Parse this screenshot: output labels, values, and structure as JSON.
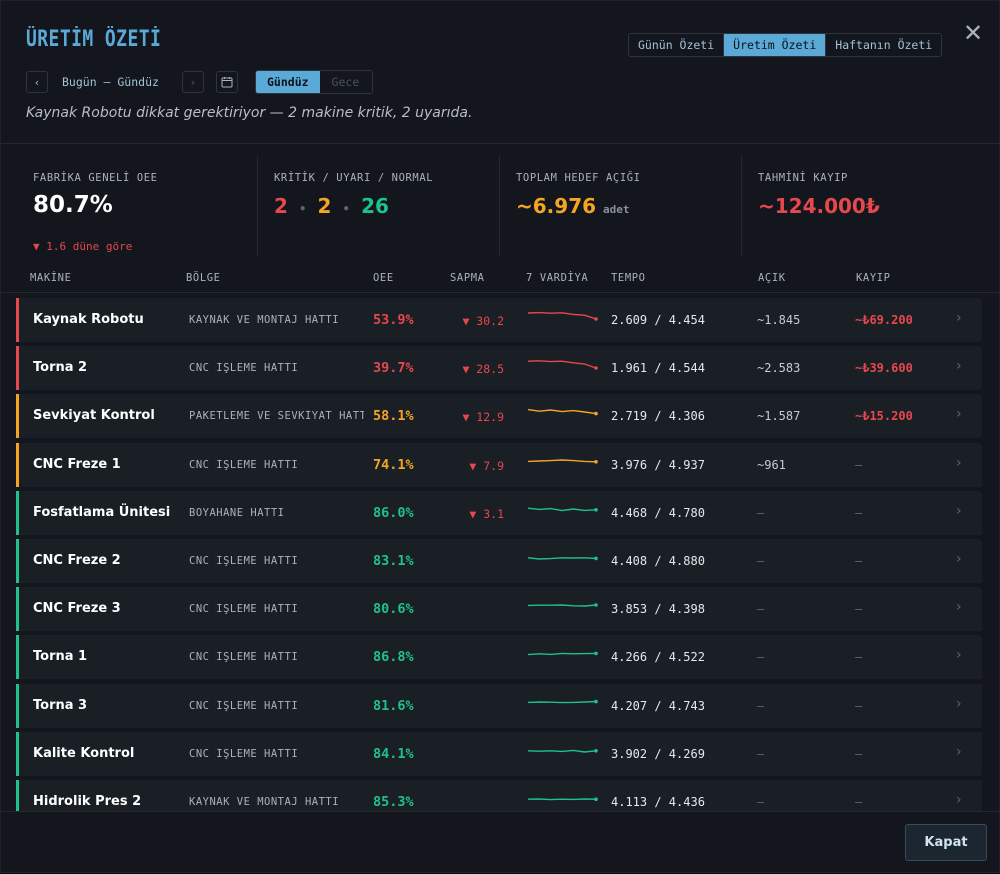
{
  "header": {
    "title": "ÜRETİM ÖZETİ",
    "tabs": [
      {
        "label": "Günün Özeti"
      },
      {
        "label": "Üretim Özeti",
        "active": true
      },
      {
        "label": "Haftanın Özeti"
      }
    ],
    "date_label": "Bugün — Gündüz",
    "shift_day": "Gündüz",
    "shift_night": "Gece",
    "summary": "Kaynak Robotu dikkat gerektiriyor — 2 makine kritik, 2 uyarıda."
  },
  "kpis": {
    "oee_label": "FABRİKA GENELİ OEE",
    "oee_value": "80.7%",
    "oee_delta": "▼ 1.6 düne göre",
    "status_label": "KRİTİK / UYARI / NORMAL",
    "critical": "2",
    "warning": "2",
    "normal": "26",
    "gap_label": "TOPLAM HEDEF AÇIĞI",
    "gap_value": "~6.976",
    "gap_unit": "adet",
    "loss_label": "TAHMİNİ KAYIP",
    "loss_value": "~124.000₺"
  },
  "table": {
    "headers": {
      "machine": "MAKİNE",
      "region": "BÖLGE",
      "oee": "OEE",
      "deviation": "SAPMA",
      "trend": "7 VARDİYA",
      "tempo": "TEMPO",
      "open": "AÇIK",
      "loss": "KAYIP"
    },
    "rows": [
      {
        "name": "Kaynak Robotu",
        "region": "KAYNAK VE MONTAJ HATTI",
        "oee": "53.9%",
        "deviation": "▼ 30.2",
        "tempo": "2.609 / 4.454",
        "open": "~1.845",
        "loss": "~₺69.200",
        "status": "critical",
        "trend": [
          0.85,
          0.87,
          0.84,
          0.86,
          0.78,
          0.74,
          0.55
        ]
      },
      {
        "name": "Torna 2",
        "region": "CNC İŞLEME HATTI",
        "oee": "39.7%",
        "deviation": "▼ 28.5",
        "tempo": "1.961 / 4.544",
        "open": "~2.583",
        "loss": "~₺39.600",
        "status": "critical",
        "trend": [
          0.84,
          0.86,
          0.82,
          0.84,
          0.76,
          0.7,
          0.5
        ]
      },
      {
        "name": "Sevkiyat Kontrol",
        "region": "PAKETLEME VE SEVKİYAT HATTI",
        "oee": "58.1%",
        "deviation": "▼ 12.9",
        "tempo": "2.719 / 4.306",
        "open": "~1.587",
        "loss": "~₺15.200",
        "status": "warning",
        "trend": [
          0.82,
          0.74,
          0.8,
          0.72,
          0.77,
          0.7,
          0.62
        ]
      },
      {
        "name": "CNC Freze 1",
        "region": "CNC İŞLEME HATTI",
        "oee": "74.1%",
        "deviation": "▼ 7.9",
        "tempo": "3.976 / 4.937",
        "open": "~961",
        "loss": "—",
        "status": "warning",
        "trend": [
          0.68,
          0.7,
          0.72,
          0.75,
          0.72,
          0.68,
          0.66
        ]
      },
      {
        "name": "Fosfatlama Ünitesi",
        "region": "BOYAHANE HATTI",
        "oee": "86.0%",
        "deviation": "▼ 3.1",
        "tempo": "4.468 / 4.780",
        "open": "—",
        "loss": "—",
        "status": "normal",
        "trend": [
          0.74,
          0.68,
          0.72,
          0.62,
          0.7,
          0.63,
          0.66
        ]
      },
      {
        "name": "CNC Freze 2",
        "region": "CNC İŞLEME HATTI",
        "oee": "83.1%",
        "deviation": "",
        "tempo": "4.408 / 4.880",
        "open": "—",
        "loss": "—",
        "status": "normal",
        "trend": [
          0.66,
          0.6,
          0.62,
          0.66,
          0.65,
          0.66,
          0.63
        ]
      },
      {
        "name": "CNC Freze 3",
        "region": "CNC İŞLEME HATTI",
        "oee": "80.6%",
        "deviation": "",
        "tempo": "3.853 / 4.398",
        "open": "—",
        "loss": "—",
        "status": "normal",
        "trend": [
          0.68,
          0.69,
          0.69,
          0.7,
          0.66,
          0.65,
          0.7
        ]
      },
      {
        "name": "Torna 1",
        "region": "CNC İŞLEME HATTI",
        "oee": "86.8%",
        "deviation": "",
        "tempo": "4.266 / 4.522",
        "open": "—",
        "loss": "—",
        "status": "normal",
        "trend": [
          0.62,
          0.66,
          0.63,
          0.68,
          0.66,
          0.67,
          0.68
        ]
      },
      {
        "name": "Torna 3",
        "region": "CNC İŞLEME HATTI",
        "oee": "81.6%",
        "deviation": "",
        "tempo": "4.207 / 4.743",
        "open": "—",
        "loss": "—",
        "status": "normal",
        "trend": [
          0.68,
          0.7,
          0.69,
          0.67,
          0.68,
          0.7,
          0.72
        ]
      },
      {
        "name": "Kalite Kontrol",
        "region": "CNC İŞLEME HATTI",
        "oee": "84.1%",
        "deviation": "",
        "tempo": "3.902 / 4.269",
        "open": "—",
        "loss": "—",
        "status": "normal",
        "trend": [
          0.66,
          0.64,
          0.66,
          0.63,
          0.68,
          0.6,
          0.66
        ]
      },
      {
        "name": "Hidrolik Pres 2",
        "region": "KAYNAK VE MONTAJ HATTI",
        "oee": "85.3%",
        "deviation": "",
        "tempo": "4.113 / 4.436",
        "open": "—",
        "loss": "—",
        "status": "normal",
        "trend": [
          0.64,
          0.65,
          0.62,
          0.64,
          0.63,
          0.65,
          0.64
        ]
      }
    ]
  },
  "colors": {
    "critical": "#e5484d",
    "warning": "#f5a524",
    "normal": "#1fc28a",
    "accent": "#5aa9d6",
    "muted": "#5b6472"
  },
  "icons": {
    "close": "close-icon",
    "prev": "chevron-left-icon",
    "next": "chevron-right-icon",
    "calendar": "calendar-icon",
    "row": "chevron-right-icon"
  },
  "footer": {
    "close_label": "Kapat"
  }
}
